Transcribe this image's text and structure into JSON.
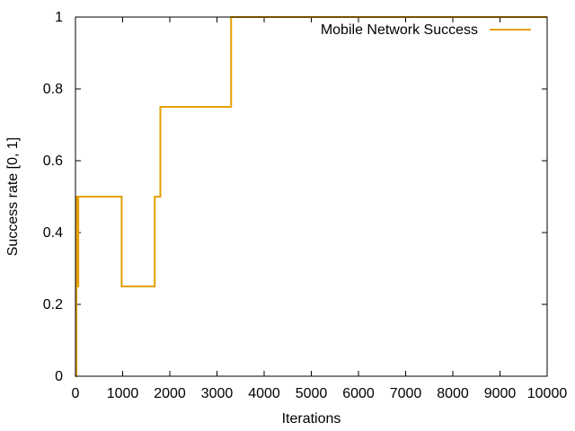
{
  "chart_data": {
    "type": "line",
    "step": true,
    "title": "",
    "xlabel": "Iterations",
    "ylabel": "Success rate [0, 1]",
    "xlim": [
      0,
      10000
    ],
    "ylim": [
      0,
      1
    ],
    "x_ticks": [
      0,
      1000,
      2000,
      3000,
      4000,
      5000,
      6000,
      7000,
      8000,
      9000,
      10000
    ],
    "x_tick_labels": [
      "0",
      "1000",
      "2000",
      "3000",
      "4000",
      "5000",
      "6000",
      "7000",
      "8000",
      "9000",
      "10000"
    ],
    "y_ticks": [
      0,
      0.2,
      0.4,
      0.6,
      0.8,
      1
    ],
    "y_tick_labels": [
      "0",
      "0.2",
      "0.4",
      "0.6",
      "0.8",
      "1"
    ],
    "grid": false,
    "legend_position": "top-right",
    "series": [
      {
        "name": "Mobile Network Success",
        "color": "#e69f00",
        "x": [
          0,
          20,
          40,
          60,
          980,
          1680,
          1800,
          3300,
          10000
        ],
        "y": [
          0,
          0.5,
          0.25,
          0.5,
          0.25,
          0.5,
          0.75,
          1,
          1
        ]
      }
    ]
  }
}
